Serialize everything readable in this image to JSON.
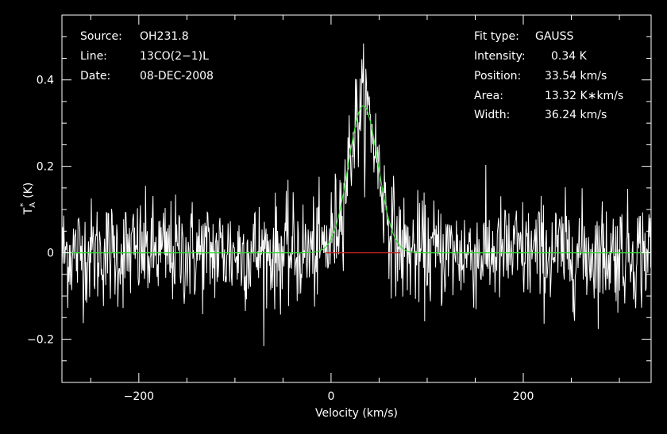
{
  "chart_data": {
    "type": "line",
    "xlabel": "Velocity (km/s)",
    "ylabel": "T",
    "ylabel_sub": "A",
    "ylabel_sup": "*",
    "ylabel_unit": "(K)",
    "xlim": [
      -280,
      333
    ],
    "ylim": [
      -0.3,
      0.55
    ],
    "x_ticks": [
      -200,
      0,
      200
    ],
    "x_tick_labels": [
      "−200",
      "0",
      "200"
    ],
    "y_ticks": [
      -0.2,
      0,
      0.2,
      0.4
    ],
    "y_tick_labels": [
      "−0.2",
      "0",
      "0.2",
      "0.4"
    ],
    "grid": false,
    "info_left": [
      {
        "key": "Source:",
        "value": "OH231.8"
      },
      {
        "key": "Line:",
        "value": "13CO(2−1)L"
      },
      {
        "key": "Date:",
        "value": "08-DEC-2008"
      }
    ],
    "info_right": [
      {
        "key": "Fit type:",
        "value": "GAUSS"
      },
      {
        "key": "Intensity:",
        "value": "0.34 K"
      },
      {
        "key": "Position:",
        "value": "33.54 km/s"
      },
      {
        "key": "Area:",
        "value": "13.32 K∗km/s"
      },
      {
        "key": "Width:",
        "value": "36.24 km/s"
      }
    ],
    "series": [
      {
        "type": "noisy-spectrum",
        "color": "#ffffff",
        "x_start": -280,
        "x_end": 333,
        "channel_width": 0.6,
        "noise_sigma": 0.062
      },
      {
        "type": "gaussian-fit",
        "color": "#33dd33",
        "amplitude": 0.34,
        "center": 33.54,
        "fwhm": 36.24
      },
      {
        "type": "baseline",
        "color": "#cc2222",
        "value": 0,
        "x_range": [
          -6,
          72
        ]
      }
    ]
  }
}
